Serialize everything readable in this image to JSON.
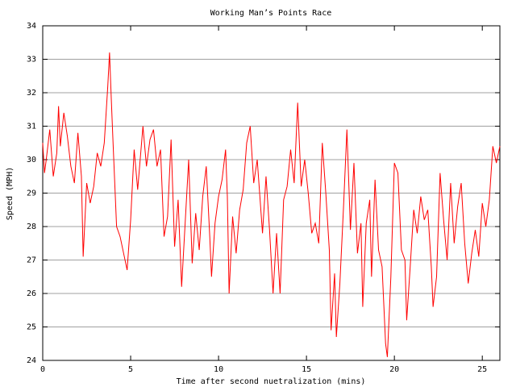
{
  "chart_data": {
    "type": "line",
    "title": "Working Man’s Points Race",
    "x_label": "Time after second nuetralization (mins)",
    "y_label": "Speed (MPH)",
    "xlim": [
      0,
      26
    ],
    "xticks": [
      0,
      5,
      10,
      15,
      20,
      25
    ],
    "ylim": [
      24,
      34
    ],
    "yticks": [
      24,
      25,
      26,
      27,
      28,
      29,
      30,
      31,
      32,
      33,
      34
    ],
    "grid": true,
    "series": [
      {
        "name": "Speed",
        "color": "#ff0000",
        "x": [
          0,
          0.1,
          0.2,
          0.4,
          0.6,
          0.8,
          0.9,
          1.0,
          1.2,
          1.4,
          1.6,
          1.8,
          2.0,
          2.2,
          2.3,
          2.5,
          2.7,
          2.9,
          3.1,
          3.3,
          3.5,
          3.7,
          3.8,
          3.9,
          4.0,
          4.2,
          4.4,
          4.6,
          4.8,
          5.0,
          5.2,
          5.4,
          5.7,
          5.9,
          6.1,
          6.3,
          6.5,
          6.7,
          6.9,
          7.1,
          7.3,
          7.5,
          7.7,
          7.9,
          8.1,
          8.3,
          8.5,
          8.7,
          8.9,
          9.1,
          9.3,
          9.5,
          9.6,
          9.8,
          10.0,
          10.2,
          10.4,
          10.5,
          10.6,
          10.8,
          11.0,
          11.2,
          11.4,
          11.6,
          11.8,
          12.0,
          12.2,
          12.5,
          12.7,
          12.9,
          13.1,
          13.3,
          13.5,
          13.7,
          13.9,
          14.1,
          14.3,
          14.5,
          14.7,
          14.9,
          15.1,
          15.3,
          15.5,
          15.7,
          15.9,
          16.1,
          16.3,
          16.4,
          16.6,
          16.7,
          16.9,
          17.1,
          17.3,
          17.5,
          17.7,
          17.9,
          18.1,
          18.2,
          18.4,
          18.6,
          18.7,
          18.9,
          19.1,
          19.3,
          19.5,
          19.6,
          19.8,
          20.0,
          20.2,
          20.4,
          20.6,
          20.7,
          20.9,
          21.1,
          21.3,
          21.5,
          21.7,
          21.9,
          22.1,
          22.2,
          22.4,
          22.6,
          22.8,
          23.0,
          23.2,
          23.4,
          23.6,
          23.8,
          24.0,
          24.2,
          24.4,
          24.6,
          24.8,
          25.0,
          25.2,
          25.4,
          25.6,
          25.8,
          26.0
        ],
        "values": [
          30.5,
          29.6,
          30.0,
          30.9,
          29.5,
          30.2,
          31.6,
          30.4,
          31.4,
          30.7,
          29.8,
          29.3,
          30.8,
          29.5,
          27.1,
          29.3,
          28.7,
          29.2,
          30.2,
          29.8,
          30.5,
          32.2,
          33.2,
          31.8,
          30.5,
          28.0,
          27.7,
          27.2,
          26.7,
          28.2,
          30.3,
          29.1,
          31.0,
          29.8,
          30.6,
          30.9,
          29.8,
          30.3,
          27.7,
          28.3,
          30.6,
          27.4,
          28.8,
          26.2,
          28.1,
          30.0,
          26.9,
          28.4,
          27.3,
          28.9,
          29.8,
          27.7,
          26.5,
          28.1,
          28.9,
          29.4,
          30.3,
          28.9,
          26.0,
          28.3,
          27.2,
          28.5,
          29.1,
          30.5,
          31.0,
          29.3,
          30.0,
          27.8,
          29.5,
          27.9,
          26.0,
          27.8,
          26.0,
          28.8,
          29.2,
          30.3,
          29.3,
          31.7,
          29.2,
          30.0,
          29.0,
          27.8,
          28.1,
          27.5,
          30.5,
          29.0,
          27.3,
          24.9,
          26.6,
          24.7,
          26.3,
          28.5,
          30.9,
          27.9,
          29.9,
          27.2,
          28.1,
          25.6,
          28.1,
          28.8,
          26.5,
          29.4,
          27.3,
          26.8,
          24.5,
          24.1,
          26.5,
          29.9,
          29.6,
          27.3,
          27.0,
          25.2,
          26.8,
          28.5,
          27.8,
          28.9,
          28.2,
          28.5,
          26.8,
          25.6,
          26.5,
          29.6,
          28.2,
          27.0,
          29.3,
          27.5,
          28.6,
          29.3,
          27.5,
          26.3,
          27.2,
          27.9,
          27.1,
          28.7,
          28.0,
          28.8,
          30.4,
          29.9,
          30.4
        ]
      }
    ]
  }
}
